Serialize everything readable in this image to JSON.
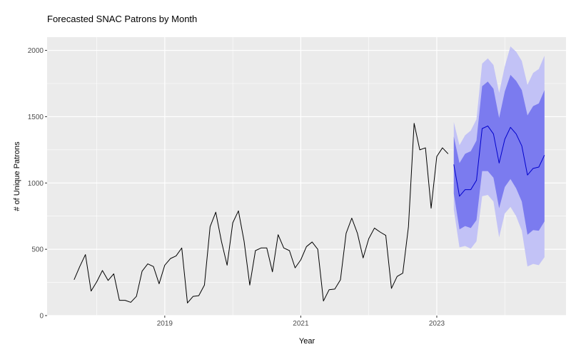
{
  "chart_data": {
    "type": "line",
    "title": "Forecasted SNAC Patrons by Month",
    "xlabel": "Year",
    "ylabel": "# of Unique Patrons",
    "xlim": [
      2017.27,
      2024.9
    ],
    "ylim": [
      0,
      2100
    ],
    "x_ticks": [
      {
        "value": 2019,
        "label": "2019"
      },
      {
        "value": 2021,
        "label": "2021"
      },
      {
        "value": 2023,
        "label": "2023"
      }
    ],
    "y_ticks": [
      {
        "value": 0,
        "label": "0"
      },
      {
        "value": 500,
        "label": "500"
      },
      {
        "value": 1000,
        "label": "1000"
      },
      {
        "value": 1500,
        "label": "1500"
      },
      {
        "value": 2000,
        "label": "2000"
      }
    ],
    "grid": true,
    "legend": "none",
    "start": "2017-09",
    "observed": [
      270,
      370,
      460,
      185,
      255,
      340,
      265,
      315,
      115,
      115,
      100,
      145,
      335,
      390,
      370,
      240,
      380,
      430,
      450,
      510,
      95,
      145,
      150,
      230,
      670,
      780,
      560,
      380,
      700,
      790,
      560,
      230,
      490,
      510,
      510,
      330,
      610,
      510,
      490,
      360,
      420,
      520,
      555,
      500,
      110,
      195,
      200,
      270,
      620,
      735,
      620,
      435,
      580,
      660,
      630,
      605,
      205,
      295,
      320,
      670,
      1450,
      1250,
      1265,
      810,
      1200,
      1265,
      1220
    ],
    "forecast_start": "2023-04",
    "forecast": {
      "mean": [
        1140,
        900,
        950,
        950,
        1020,
        1410,
        1430,
        1370,
        1150,
        1330,
        1420,
        1370,
        1280,
        1060,
        1110,
        1120,
        1210
      ],
      "lower_80": [
        920,
        650,
        675,
        660,
        720,
        1090,
        1090,
        1040,
        810,
        970,
        1030,
        960,
        860,
        610,
        645,
        640,
        710
      ],
      "upper_80": [
        1350,
        1150,
        1220,
        1240,
        1320,
        1730,
        1765,
        1710,
        1490,
        1690,
        1815,
        1770,
        1700,
        1510,
        1580,
        1600,
        1700
      ],
      "lower_95": [
        800,
        515,
        525,
        505,
        560,
        900,
        910,
        860,
        590,
        770,
        820,
        750,
        640,
        370,
        390,
        380,
        440
      ],
      "upper_95": [
        1460,
        1285,
        1360,
        1395,
        1480,
        1900,
        1940,
        1890,
        1680,
        1880,
        2030,
        1990,
        1920,
        1740,
        1830,
        1860,
        1960
      ]
    },
    "colors": {
      "observed": "#000000",
      "forecast_mean": "#0000cc",
      "band_80": "#7b7bef",
      "band_95": "#c2c2f6",
      "panel": "#ebebeb",
      "grid": "#ffffff"
    }
  }
}
